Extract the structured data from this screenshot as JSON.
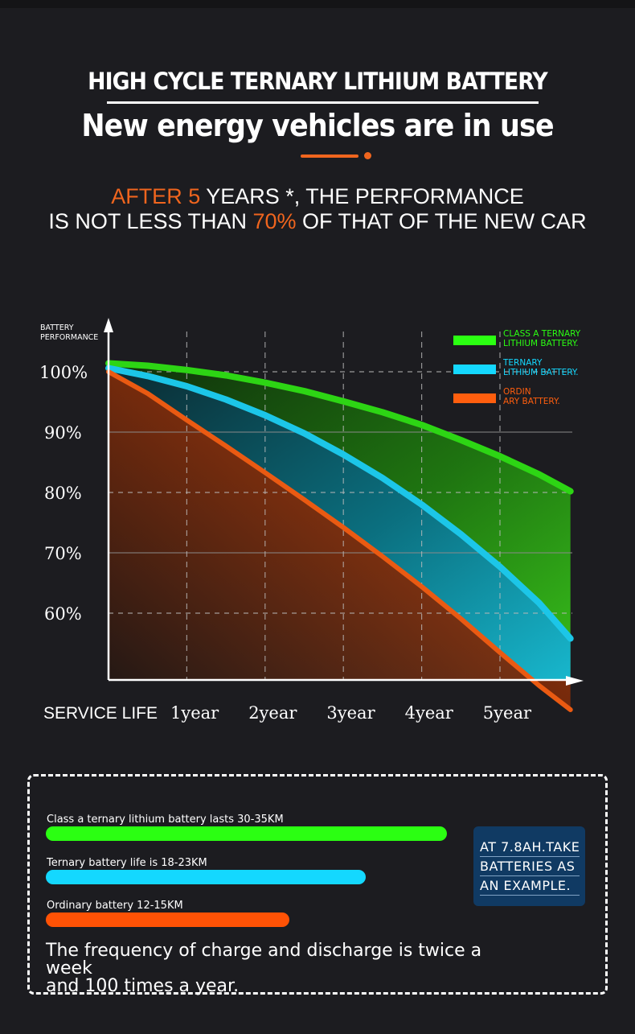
{
  "header": {
    "title": "HIGH CYCLE TERNARY LITHIUM BATTERY",
    "subtitle": "New energy vehicles are in use"
  },
  "headline": {
    "line1_a": "AFTER 5",
    "line1_b": " YEARS *, THE PERFORMANCE",
    "line2_a": "IS NOT LESS THAN ",
    "line2_b": "70%",
    "line2_c": " OF THAT OF THE NEW CAR"
  },
  "chart_data": {
    "type": "area",
    "ylabel": "BATTERY PERFORMANCE",
    "xlabel": "SERVICE LIFE",
    "y_ticks": [
      "100%",
      "90%",
      "80%",
      "70%",
      "60%"
    ],
    "categories": [
      "1year",
      "2year",
      "3year",
      "4year",
      "5year"
    ],
    "x": [
      0,
      0.5,
      1,
      1.5,
      2,
      2.5,
      3,
      3.5,
      4,
      4.5,
      5,
      5.5,
      5.9
    ],
    "series": [
      {
        "name": "CLASS A TERNARY LITHIUM BATTERY.",
        "color": "#2dd514",
        "values": [
          101.4,
          101.0,
          100.3,
          99.4,
          98.2,
          96.8,
          95.1,
          93.3,
          91.2,
          88.7,
          86.0,
          83.0,
          80.2
        ]
      },
      {
        "name": "TERNARY LITHIUM BATTERY.",
        "color": "#1cc6e8",
        "values": [
          100.6,
          99.3,
          97.6,
          95.4,
          92.8,
          89.8,
          86.3,
          82.4,
          78.0,
          73.1,
          67.7,
          61.7,
          55.8
        ]
      },
      {
        "name": "ORDINARY BATTERY.",
        "color": "#ea5a12",
        "values": [
          100.0,
          96.4,
          92.0,
          87.7,
          83.3,
          78.8,
          74.2,
          69.4,
          64.4,
          59.1,
          53.5,
          48.0,
          44.0
        ]
      }
    ],
    "legend": [
      {
        "line1": "CLASS A TERNARY",
        "line2": "LITHIUM BATTERY.",
        "color": "#2bff12"
      },
      {
        "line1": "TERNARY",
        "line2": "LITHIUM BATTERY.",
        "color": "#14d8ff"
      },
      {
        "line1": "ORDIN",
        "line2": "ARY BATTERY.",
        "color": "#ff5e0e"
      }
    ],
    "legend_position": "top-right",
    "ylim": [
      40,
      103
    ],
    "grid": true
  },
  "panel": {
    "bars": [
      {
        "label": "Class a ternary lithium battery lasts 30-35KM",
        "color": "#2bff12",
        "fraction": 1.0
      },
      {
        "label": "Ternary battery life is 18-23KM",
        "color": "#14d8ff",
        "fraction": 0.798
      },
      {
        "label": "Ordinary battery 12-15KM",
        "color": "#ff5205",
        "fraction": 0.607
      }
    ],
    "badge_lines": [
      "AT 7.8AH.TAKE",
      "BATTERIES AS",
      "AN EXAMPLE."
    ],
    "frequency_line1": "The frequency of charge and discharge is twice a week",
    "frequency_line2": "and 100 times a year."
  }
}
